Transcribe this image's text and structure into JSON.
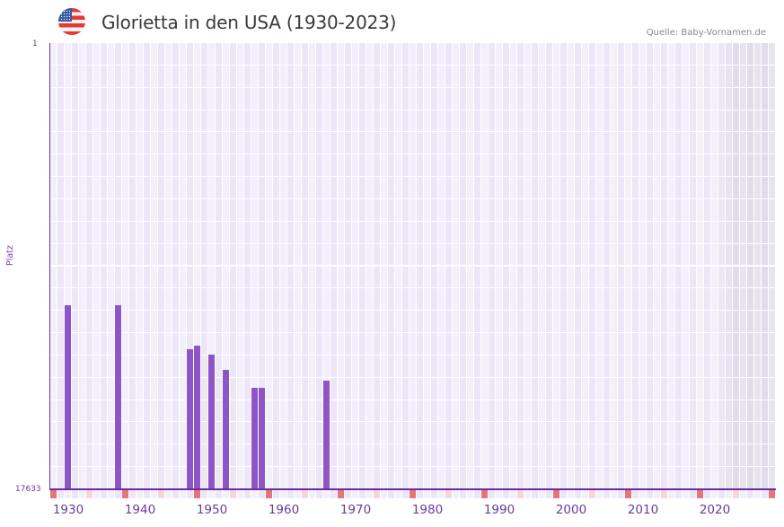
{
  "header": {
    "flag_icon": "us-flag-icon",
    "title": "Glorietta in den USA (1930-2023)",
    "source": "Quelle: Baby-Vornamen.de"
  },
  "axis": {
    "y_top_label": "1",
    "y_bottom_label": "17633",
    "y_title": "Platz",
    "x_ticks": [
      "1930",
      "1940",
      "1950",
      "1960",
      "1970",
      "1980",
      "1990",
      "2000",
      "2010",
      "2020"
    ]
  },
  "colors": {
    "bar": "#8e55c8",
    "axis": "#6a2f9f",
    "grid_a": "#f3effb",
    "grid_b": "#ece6f7",
    "future_a": "#e8e4ef",
    "future_b": "#e1dcec",
    "decade_marker": "#e8737a",
    "half_decade_marker": "#f5d6df"
  },
  "chart_data": {
    "type": "bar",
    "title": "Glorietta in den USA (1930-2023)",
    "subtitle": "Quelle: Baby-Vornamen.de",
    "xlabel": "",
    "ylabel": "Platz",
    "y_inverted": true,
    "ylim": [
      1,
      17633
    ],
    "x_range": [
      1928,
      2028
    ],
    "future_shaded_from": 2022,
    "grid": true,
    "legend": null,
    "categories": [
      "1930",
      "1937",
      "1947",
      "1948",
      "1950",
      "1952",
      "1956",
      "1957",
      "1966"
    ],
    "values": [
      10360,
      10360,
      12100,
      11960,
      12310,
      12910,
      13620,
      13620,
      13340
    ]
  }
}
